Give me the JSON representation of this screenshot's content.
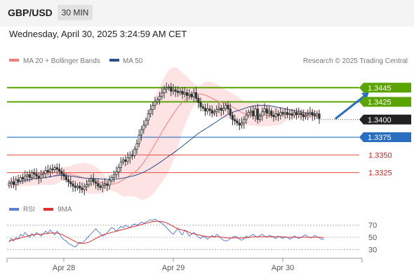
{
  "header": {
    "symbol": "GBP/USD",
    "timeframe": "30 MIN"
  },
  "datetime": "Wednesday, April 30, 2025 3:24:59 AM CET",
  "legend": {
    "ma20": "MA 20 + Bollinger Bands",
    "ma50": "MA 50",
    "credit": "Research © 2025 Trading Central"
  },
  "rsi_legend": {
    "rsi": "RSI",
    "ma": "9MA"
  },
  "colors": {
    "support": "#2a6fbf",
    "resistance": "#5aa300",
    "level": "#e74c3c",
    "current": "#222222",
    "candle": "#333333",
    "ma20": "#f08080",
    "ma50": "#2c4f8c",
    "bollinger": "#fde3e3",
    "rsi": "#5b7fd4",
    "rsi_ma": "#d93030",
    "arrow": "#2a6fbf"
  },
  "chart_data": [
    {
      "type": "candlestick",
      "title": "GBP/USD",
      "ylim": [
        1.329,
        1.347
      ],
      "x_ticks": [
        {
          "label": "Apr 28",
          "index": 24
        },
        {
          "label": "Apr 29",
          "index": 72
        },
        {
          "label": "Apr 30",
          "index": 120
        }
      ],
      "close": [
        1.331,
        1.3312,
        1.3308,
        1.3315,
        1.3313,
        1.3318,
        1.3316,
        1.332,
        1.3322,
        1.3318,
        1.3325,
        1.3323,
        1.332,
        1.3317,
        1.3322,
        1.3324,
        1.3328,
        1.3326,
        1.333,
        1.3329,
        1.3332,
        1.333,
        1.3327,
        1.3323,
        1.332,
        1.3315,
        1.3312,
        1.3309,
        1.3306,
        1.3304,
        1.3306,
        1.3303,
        1.3301,
        1.3305,
        1.3308,
        1.3313,
        1.3316,
        1.3312,
        1.331,
        1.3306,
        1.3304,
        1.3307,
        1.3309,
        1.3307,
        1.3314,
        1.3318,
        1.3322,
        1.3326,
        1.3332,
        1.334,
        1.3343,
        1.3341,
        1.3346,
        1.335,
        1.3349,
        1.3358,
        1.3366,
        1.3378,
        1.3386,
        1.3392,
        1.3399,
        1.3408,
        1.3414,
        1.342,
        1.3425,
        1.3428,
        1.3433,
        1.3438,
        1.3443,
        1.3445,
        1.3446,
        1.344,
        1.3442,
        1.344,
        1.3438,
        1.344,
        1.3436,
        1.3438,
        1.3434,
        1.3436,
        1.3432,
        1.3438,
        1.343,
        1.3424,
        1.3418,
        1.3416,
        1.3412,
        1.3415,
        1.3413,
        1.3409,
        1.3411,
        1.3414,
        1.3416,
        1.3413,
        1.3416,
        1.342,
        1.3415,
        1.3406,
        1.34,
        1.3398,
        1.3395,
        1.3392,
        1.3395,
        1.34,
        1.3406,
        1.341,
        1.3412,
        1.3405,
        1.3415,
        1.34,
        1.3405,
        1.3411,
        1.3415,
        1.3409,
        1.3412,
        1.3406,
        1.3404,
        1.3408,
        1.3406,
        1.341,
        1.3408,
        1.341,
        1.3407,
        1.3408,
        1.3406,
        1.341,
        1.3407,
        1.3409,
        1.3407,
        1.3404,
        1.3406,
        1.3408,
        1.341,
        1.3406,
        1.3405,
        1.3408,
        1.3401
      ],
      "levels": {
        "resistance": [
          1.3445,
          1.3425
        ],
        "support": [
          1.3375
        ],
        "secondary": [
          1.335,
          1.3325
        ],
        "current": 1.34
      },
      "level_labels": [
        "1.3445",
        "1.3425",
        "1.3400",
        "1.3375",
        "1.3350",
        "1.3325"
      ],
      "arrow": {
        "from_index": 143,
        "from": 1.3401,
        "to_index": 151,
        "to": 1.3443
      }
    },
    {
      "type": "line",
      "title": "RSI",
      "ylim": [
        20,
        80
      ],
      "yticks": [
        70,
        50,
        30
      ],
      "series": [
        {
          "name": "RSI",
          "values": [
            42,
            48,
            44,
            50,
            47,
            55,
            52,
            58,
            54,
            50,
            56,
            52,
            58,
            55,
            52,
            56,
            60,
            57,
            62,
            58,
            54,
            60,
            56,
            50,
            46,
            44,
            40,
            38,
            36,
            34,
            38,
            42,
            40,
            44,
            48,
            52,
            56,
            60,
            64,
            60,
            56,
            52,
            54,
            58,
            62,
            66,
            64,
            60,
            64,
            68,
            66,
            70,
            68,
            66,
            70,
            72,
            70,
            72,
            75,
            73,
            75,
            77,
            79,
            78,
            80,
            77,
            75,
            73,
            70,
            66,
            62,
            58,
            55,
            60,
            65,
            58,
            54,
            62,
            58,
            52,
            55,
            58,
            54,
            50,
            48,
            52,
            50,
            47,
            50,
            53,
            50,
            55,
            52,
            48,
            45,
            44,
            45,
            48,
            50,
            52,
            50,
            47,
            45,
            48,
            52,
            50,
            53,
            55,
            52,
            50,
            53,
            55,
            52,
            50,
            53,
            52,
            50,
            48,
            52,
            50,
            48,
            51,
            50,
            47,
            49,
            52,
            50,
            48,
            50,
            52,
            54,
            51,
            49,
            50,
            53,
            51,
            49,
            47,
            46
          ]
        },
        {
          "name": "9MA",
          "values": [
            44,
            45,
            46,
            47,
            48,
            49,
            50,
            51,
            52,
            53,
            54,
            54,
            55,
            55,
            55,
            55,
            56,
            56,
            57,
            57,
            57,
            57,
            56,
            55,
            53,
            51,
            49,
            47,
            45,
            43,
            41,
            40,
            40,
            40,
            41,
            42,
            44,
            46,
            48,
            50,
            52,
            54,
            55,
            56,
            57,
            58,
            59,
            60,
            61,
            62,
            63,
            64,
            65,
            66,
            67,
            68,
            69,
            70,
            71,
            72,
            73,
            74,
            75,
            76,
            76,
            77,
            76,
            76,
            75,
            74,
            72,
            70,
            68,
            66,
            64,
            63,
            62,
            61,
            60,
            58,
            56,
            56,
            55,
            54,
            53,
            52,
            52,
            51,
            51,
            51,
            51,
            51,
            51,
            50,
            50,
            49,
            49,
            49,
            49,
            49,
            49,
            49,
            49,
            49,
            49,
            50,
            50,
            51,
            51,
            51,
            51,
            51,
            51,
            51,
            51,
            51,
            51,
            51,
            51,
            51,
            51,
            50,
            50,
            50,
            50,
            50,
            50,
            50,
            50,
            50,
            50,
            50,
            50,
            50,
            50,
            50,
            50,
            50,
            49
          ]
        }
      ]
    }
  ]
}
